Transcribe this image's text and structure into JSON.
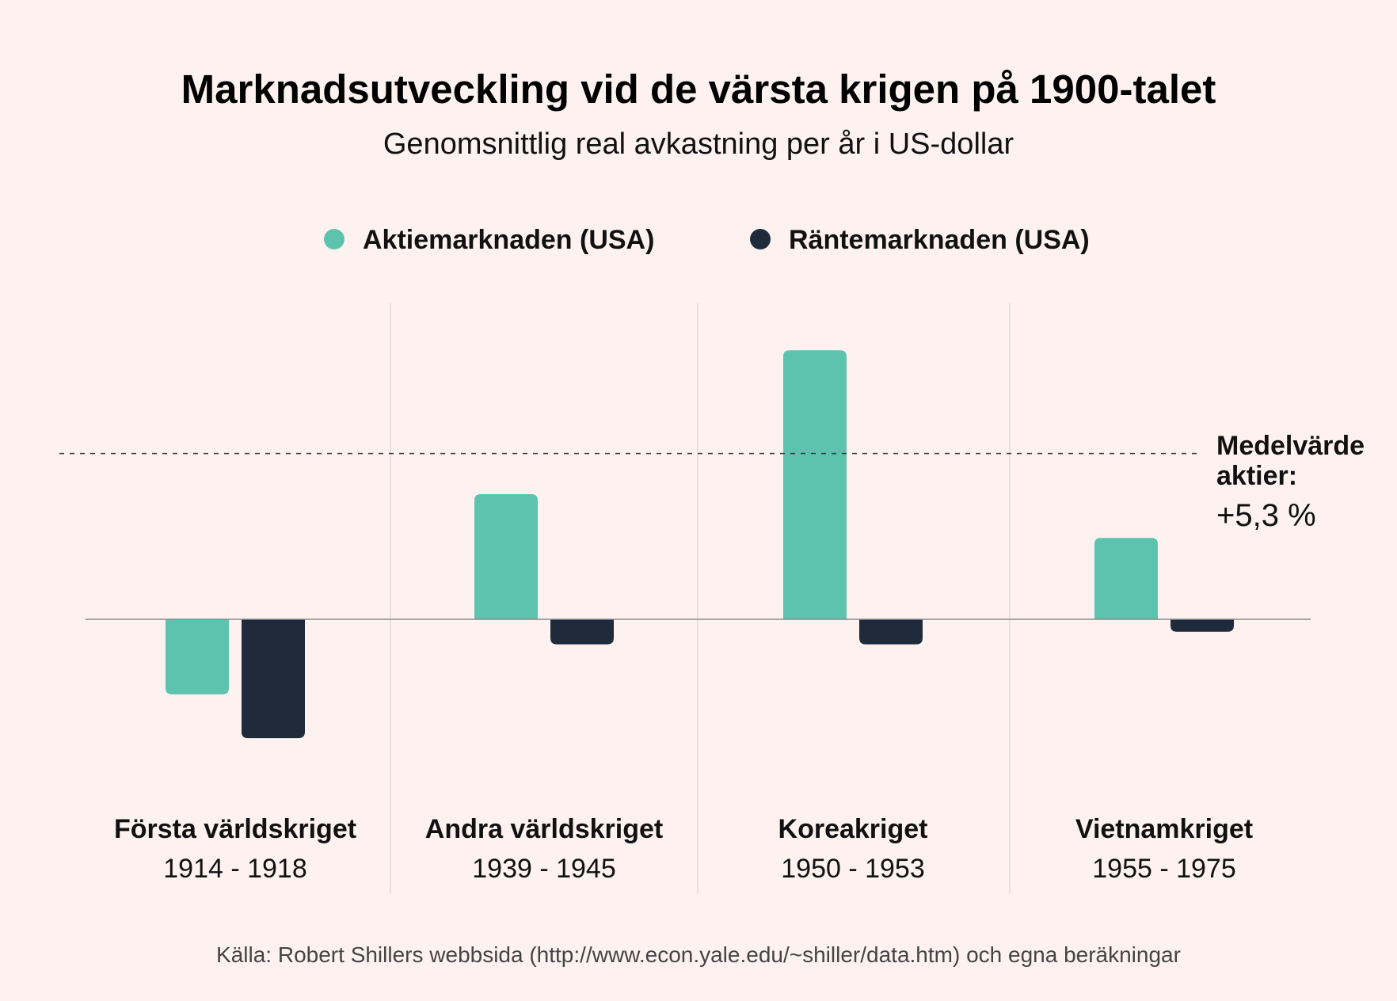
{
  "chart_data": {
    "type": "bar",
    "title": "Marknadsutveckling vid de värsta krigen på 1900-talet",
    "subtitle": "Genomsnittlig real avkastning per år i US-dollar",
    "categories": [
      "Första världskriget",
      "Andra världskriget",
      "Koreakriget",
      "Vietnamkriget"
    ],
    "category_years": [
      "1914 - 1918",
      "1939 - 1945",
      "1950 - 1953",
      "1955 - 1975"
    ],
    "series": [
      {
        "name": "Aktiemarknaden (USA)",
        "color": "#5ec3ae",
        "values": [
          -2.4,
          4.0,
          8.6,
          2.6
        ]
      },
      {
        "name": "Räntemarknaden (USA)",
        "color": "#1f2a3a",
        "values": [
          -3.8,
          -0.8,
          -0.8,
          -0.4
        ]
      }
    ],
    "ylim": [
      -6.0,
      10.0
    ],
    "grid": false,
    "legend_position": "top",
    "reference_line": {
      "value": 5.3,
      "label_line1": "Medelvärde",
      "label_line2": "aktier:",
      "label_value": "+5,3 %"
    },
    "source": "Källa: Robert Shillers webbsida (http://www.econ.yale.edu/~shiller/data.htm) och egna beräkningar"
  }
}
